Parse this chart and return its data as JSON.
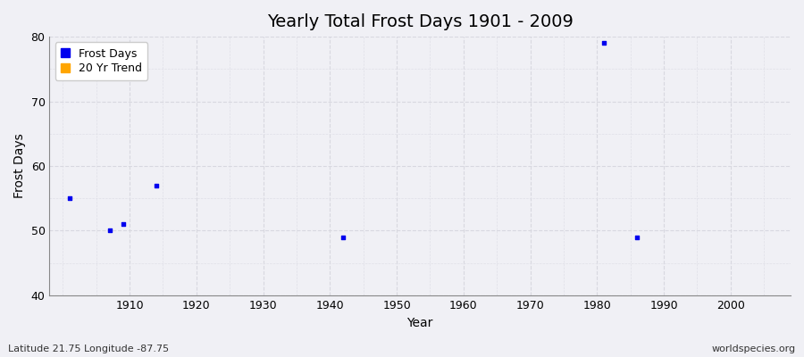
{
  "title": "Yearly Total Frost Days 1901 - 2009",
  "xlabel": "Year",
  "ylabel": "Frost Days",
  "frost_days_x": [
    1901,
    1907,
    1909,
    1914,
    1942,
    1981,
    1986
  ],
  "frost_days_y": [
    55,
    50,
    51,
    57,
    49,
    79,
    49
  ],
  "point_color": "#0000ee",
  "trend_color": "#ffa500",
  "xlim": [
    1898,
    2009
  ],
  "ylim": [
    40,
    80
  ],
  "yticks": [
    40,
    50,
    60,
    70,
    80
  ],
  "xticks": [
    1910,
    1920,
    1930,
    1940,
    1950,
    1960,
    1970,
    1980,
    1990,
    2000
  ],
  "bg_color": "#f0f0f5",
  "plot_bg_color": "#f0f0f5",
  "major_grid_color": "#d8d8e0",
  "minor_grid_color": "#e0e0e8",
  "subtitle_left": "Latitude 21.75 Longitude -87.75",
  "subtitle_right": "worldspecies.org",
  "marker_size": 3,
  "legend_frost_label": "Frost Days",
  "legend_trend_label": "20 Yr Trend",
  "title_fontsize": 14,
  "axis_fontsize": 10,
  "tick_fontsize": 9
}
